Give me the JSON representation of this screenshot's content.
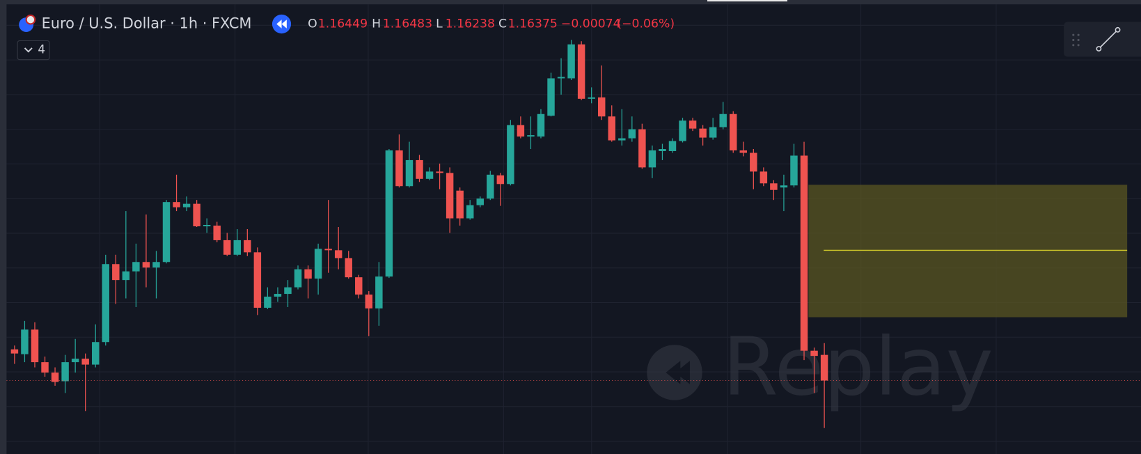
{
  "chart_data": {
    "type": "candlestick",
    "title": "Euro / U.S. Dollar · 1h · FXCM",
    "legend": {
      "o": "O",
      "h": "H",
      "l": "L",
      "c": "C",
      "change": "−0.00074",
      "change_pct": "(−0.06%)"
    },
    "indicators": "4",
    "watermark": "Replay",
    "up_color": "#26a69a",
    "down_color": "#ef5350",
    "grid": true,
    "ylim": [
      1.16163,
      1.17473
    ],
    "yticks": [
      1.162,
      1.163,
      1.164,
      1.165,
      1.166,
      1.167,
      1.168,
      1.169,
      1.17,
      1.171,
      1.172,
      1.173,
      1.174
    ],
    "open": [
      1.16465,
      1.16451,
      1.16522,
      1.16428,
      1.16398,
      1.16373,
      1.16428,
      1.16438,
      1.16421,
      1.16486,
      1.16711,
      1.16665,
      1.1669,
      1.16717,
      1.16701,
      1.16717,
      1.1689,
      1.16875,
      1.16885,
      1.1682,
      1.16822,
      1.1678,
      1.16738,
      1.1678,
      1.16745,
      1.16585,
      1.16617,
      1.16625,
      1.16644,
      1.16696,
      1.16669,
      1.16755,
      1.16751,
      1.16728,
      1.16673,
      1.16623,
      1.16583,
      1.16675,
      1.17039,
      1.16936,
      1.17011,
      1.16957,
      1.16978,
      1.16974,
      1.16923,
      1.16843,
      1.16881,
      1.169,
      1.16967,
      1.16942,
      1.17112,
      1.17079,
      1.17079,
      1.17139,
      1.17247,
      1.17247,
      1.17345,
      1.17188,
      1.17192,
      1.17137,
      1.17068,
      1.17074,
      1.171,
      1.1699,
      1.17037,
      1.17037,
      1.17066,
      1.17125,
      1.17102,
      1.17076,
      1.17106,
      1.17144,
      1.17039,
      1.17032,
      1.16978,
      1.16944,
      1.16932,
      1.16938,
      1.17024,
      1.16461,
      1.16449
    ],
    "high": [
      1.16476,
      1.16547,
      1.16543,
      1.16444,
      1.16413,
      1.16449,
      1.16495,
      1.16453,
      1.16537,
      1.16738,
      1.16738,
      1.16864,
      1.1677,
      1.16854,
      1.16749,
      1.16896,
      1.16969,
      1.16906,
      1.16896,
      1.16843,
      1.16833,
      1.16801,
      1.16812,
      1.16812,
      1.16759,
      1.16644,
      1.16644,
      1.16665,
      1.16707,
      1.16707,
      1.1677,
      1.16896,
      1.16818,
      1.16749,
      1.1668,
      1.16633,
      1.16717,
      1.17043,
      1.17085,
      1.17064,
      1.17026,
      1.1699,
      1.17001,
      1.1699,
      1.16932,
      1.16896,
      1.16906,
      1.1698,
      1.16974,
      1.17127,
      1.17137,
      1.17137,
      1.17158,
      1.17263,
      1.17305,
      1.17358,
      1.17354,
      1.17221,
      1.17284,
      1.17169,
      1.17158,
      1.17137,
      1.17116,
      1.17053,
      1.17058,
      1.17074,
      1.17133,
      1.17133,
      1.17112,
      1.17133,
      1.17179,
      1.17152,
      1.17064,
      1.17043,
      1.1699,
      1.16953,
      1.16969,
      1.17058,
      1.17064,
      1.1647,
      1.16483
    ],
    "low": [
      1.16423,
      1.16428,
      1.16413,
      1.16386,
      1.1636,
      1.16339,
      1.16398,
      1.16287,
      1.16413,
      1.16476,
      1.16596,
      1.16612,
      1.16587,
      1.16644,
      1.16612,
      1.16713,
      1.16864,
      1.16864,
      1.16818,
      1.16801,
      1.16774,
      1.16734,
      1.16734,
      1.16734,
      1.16564,
      1.16581,
      1.16602,
      1.16587,
      1.16638,
      1.16612,
      1.16623,
      1.16686,
      1.16696,
      1.16669,
      1.16612,
      1.16503,
      1.16533,
      1.16671,
      1.16932,
      1.16932,
      1.16948,
      1.16953,
      1.16927,
      1.16801,
      1.16822,
      1.16839,
      1.16875,
      1.16896,
      1.16879,
      1.16938,
      1.17074,
      1.17043,
      1.17074,
      1.17137,
      1.172,
      1.17242,
      1.17184,
      1.17175,
      1.17127,
      1.17064,
      1.17053,
      1.17064,
      1.16986,
      1.16959,
      1.17011,
      1.17032,
      1.17062,
      1.17095,
      1.17053,
      1.1707,
      1.171,
      1.17032,
      1.17022,
      1.16927,
      1.16936,
      1.16896,
      1.16864,
      1.16932,
      1.16434,
      1.16339,
      1.16238
    ],
    "close": [
      1.16453,
      1.16522,
      1.16428,
      1.16398,
      1.16371,
      1.16428,
      1.16438,
      1.16421,
      1.16486,
      1.16711,
      1.16665,
      1.1669,
      1.16717,
      1.16701,
      1.16717,
      1.1689,
      1.16875,
      1.16885,
      1.1682,
      1.16824,
      1.1678,
      1.16738,
      1.1678,
      1.16745,
      1.16585,
      1.16617,
      1.16625,
      1.16644,
      1.16696,
      1.16669,
      1.16755,
      1.16751,
      1.16728,
      1.16673,
      1.16623,
      1.16583,
      1.16675,
      1.17039,
      1.16936,
      1.17011,
      1.16957,
      1.16978,
      1.16974,
      1.16843,
      1.16843,
      1.16881,
      1.169,
      1.16969,
      1.16942,
      1.17112,
      1.17079,
      1.17083,
      1.17144,
      1.17247,
      1.17251,
      1.17345,
      1.17188,
      1.17192,
      1.17137,
      1.17068,
      1.17074,
      1.171,
      1.1699,
      1.17039,
      1.17043,
      1.17066,
      1.17125,
      1.17102,
      1.17076,
      1.17106,
      1.17144,
      1.17039,
      1.17032,
      1.16978,
      1.16944,
      1.16925,
      1.16938,
      1.17024,
      1.16461,
      1.16446,
      1.16375
    ]
  }
}
